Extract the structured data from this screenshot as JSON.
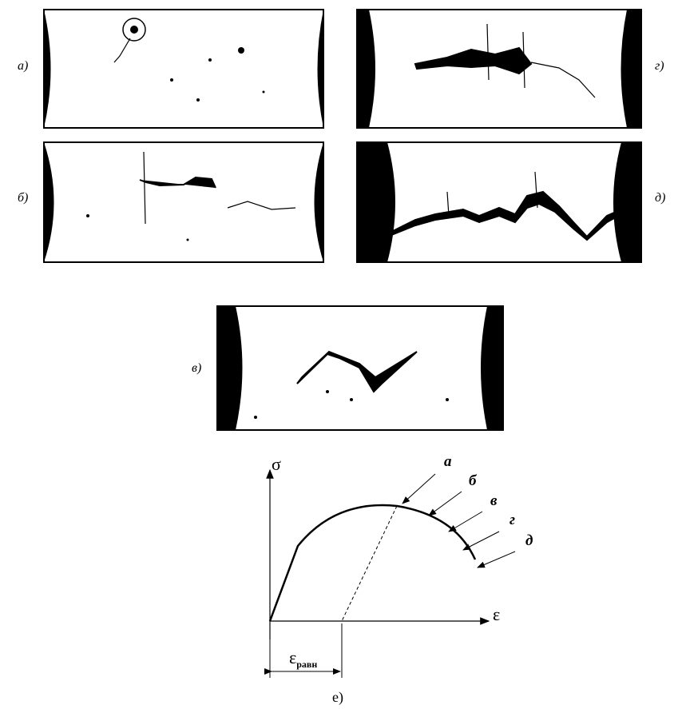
{
  "panels": [
    {
      "label": "а)"
    },
    {
      "label": "б)"
    },
    {
      "label": "в)"
    },
    {
      "label": "г)"
    },
    {
      "label": "д)"
    }
  ],
  "graph": {
    "y_axis": "σ",
    "x_axis": "ε",
    "strain": {
      "symbol": "ε",
      "subscript": "равн"
    },
    "stages": [
      "а",
      "б",
      "в",
      "г",
      "д"
    ],
    "caption": "е)"
  }
}
